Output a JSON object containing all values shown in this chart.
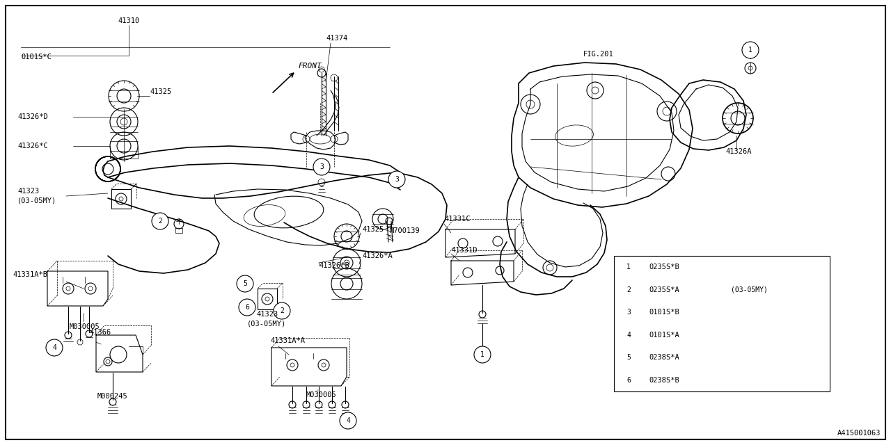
{
  "bg_color": "#ffffff",
  "watermark": "A415001063",
  "legend": [
    {
      "num": "1",
      "code": "0235S*B",
      "note": ""
    },
    {
      "num": "2",
      "code": "0235S*A",
      "note": "(03-05MY)"
    },
    {
      "num": "3",
      "code": "0101S*B",
      "note": ""
    },
    {
      "num": "4",
      "code": "0101S*A",
      "note": ""
    },
    {
      "num": "5",
      "code": "0238S*A",
      "note": ""
    },
    {
      "num": "6",
      "code": "0238S*B",
      "note": ""
    }
  ],
  "fig_width": 12.8,
  "fig_height": 6.4
}
